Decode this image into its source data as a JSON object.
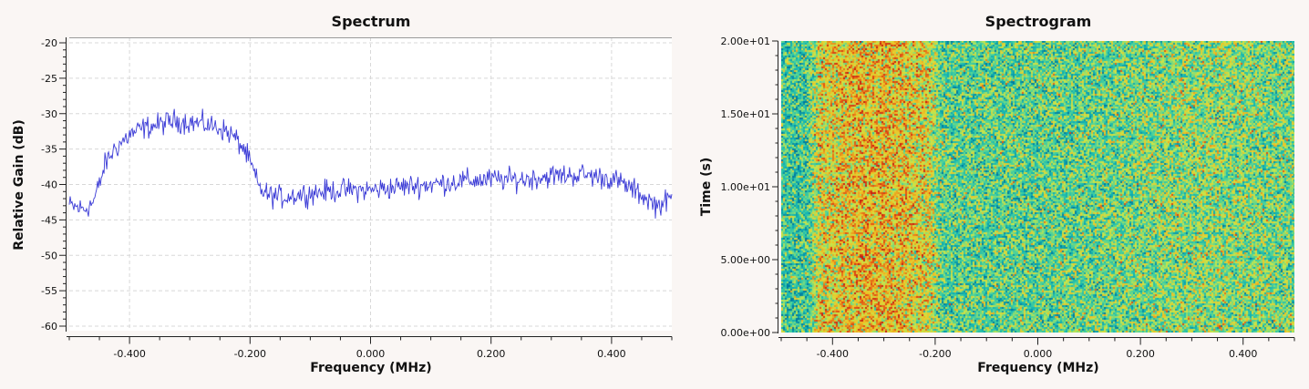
{
  "colors": {
    "background": "#faf6f4",
    "plot_bg": "#ffffff",
    "trace": "#3b3bd6",
    "grid": "#d8d8d8",
    "colormap": [
      "#007a9e",
      "#12b4b4",
      "#4fd39a",
      "#c8e64a",
      "#f0c224",
      "#e45a14",
      "#c81c10"
    ]
  },
  "chart_data": [
    {
      "type": "line",
      "title": "Spectrum",
      "xlabel": "Frequency (MHz)",
      "ylabel": "Relative Gain (dB)",
      "xlim": [
        -0.5,
        0.5
      ],
      "ylim": [
        -60,
        -20
      ],
      "xticks": [
        -0.4,
        -0.2,
        0.0,
        0.2,
        0.4
      ],
      "xtick_labels": [
        "-0.400",
        "-0.200",
        "0.000",
        "0.200",
        "0.400"
      ],
      "yticks": [
        -20,
        -25,
        -30,
        -35,
        -40,
        -45,
        -50,
        -55,
        -60
      ],
      "ytick_labels": [
        "-20",
        "-25",
        "-30",
        "-35",
        "-40",
        "-45",
        "-50",
        "-55",
        "-60"
      ],
      "grid": true,
      "series": [
        {
          "x": [
            -0.5,
            -0.475,
            -0.46,
            -0.45,
            -0.44,
            -0.425,
            -0.4,
            -0.375,
            -0.35,
            -0.325,
            -0.3,
            -0.275,
            -0.25,
            -0.23,
            -0.21,
            -0.195,
            -0.185,
            -0.17,
            -0.15,
            -0.1,
            -0.05,
            0.0,
            0.05,
            0.1,
            0.15,
            0.2,
            0.25,
            0.3,
            0.35,
            0.4,
            0.425,
            0.45,
            0.475,
            0.5
          ],
          "y": [
            -43,
            -43.5,
            -42.5,
            -40,
            -37,
            -35,
            -33,
            -32,
            -31.5,
            -31,
            -31.2,
            -31.5,
            -32,
            -33,
            -35,
            -38,
            -40.5,
            -41.5,
            -41.8,
            -41.2,
            -40.8,
            -40.8,
            -40.3,
            -40,
            -39.5,
            -39.3,
            -39.3,
            -38.8,
            -38.6,
            -39.2,
            -40.2,
            -41.5,
            -43,
            -42
          ]
        }
      ]
    },
    {
      "type": "heatmap",
      "title": "Spectrogram",
      "xlabel": "Frequency (MHz)",
      "ylabel": "Time (s)",
      "xlim": [
        -0.5,
        0.5
      ],
      "ylim": [
        0,
        20
      ],
      "xticks": [
        -0.4,
        -0.2,
        0.0,
        0.2,
        0.4
      ],
      "xtick_labels": [
        "-0.400",
        "-0.200",
        "0.000",
        "0.200",
        "0.400"
      ],
      "yticks": [
        0,
        5,
        10,
        15,
        20
      ],
      "ytick_labels": [
        "0.00e+00",
        "5.00e+00",
        "1.00e+01",
        "1.50e+01",
        "2.00e+01"
      ],
      "grid": false
    }
  ]
}
